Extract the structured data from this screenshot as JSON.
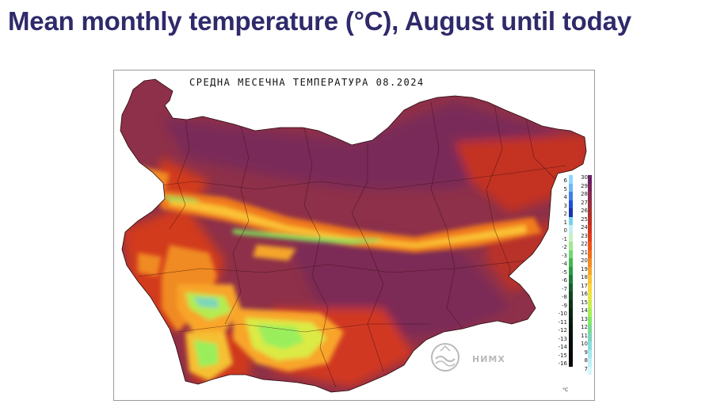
{
  "slide": {
    "title": "Mean monthly temperature (°C), August until today"
  },
  "map": {
    "title": "СРЕДНА МЕСЕЧНА ТЕМПЕРАТУРА  08.2024",
    "logo_text": "НИМХ",
    "unit": "°C",
    "legend_left_labels": [
      "6",
      "5",
      "4",
      "3",
      "2",
      "1",
      "0",
      "-1",
      "-2",
      "-3",
      "-4",
      "-5",
      "-6",
      "-7",
      "-8",
      "-9",
      "-10",
      "-11",
      "-12",
      "-13",
      "-14",
      "-15",
      "-16"
    ],
    "legend_right_labels": [
      "30",
      "29",
      "28",
      "27",
      "26",
      "25",
      "24",
      "23",
      "22",
      "21",
      "20",
      "19",
      "18",
      "17",
      "16",
      "15",
      "14",
      "13",
      "12",
      "11",
      "10",
      "9",
      "8",
      "7"
    ],
    "legend_left_colors": [
      "#8fd6ff",
      "#6fb6f5",
      "#3f7fe8",
      "#1f4fd8",
      "#1633b0",
      "#7ad0e8",
      "#bfeef5",
      "#c8f0c0",
      "#a0e890",
      "#70d870",
      "#40b850",
      "#2a9a40",
      "#1e7a34",
      "#165c2a",
      "#0f4420",
      "#0b3318",
      "#082612",
      "#061c0d",
      "#04140a",
      "#030f07",
      "#020a05",
      "#020804",
      "#010603"
    ],
    "legend_right_colors": [
      "#6a1e63",
      "#7a2458",
      "#8a2a4e",
      "#9a2e3e",
      "#ab2f2f",
      "#c02f24",
      "#d2341c",
      "#e23d18",
      "#ec5418",
      "#f06c1c",
      "#f48a24",
      "#f8a52c",
      "#fbc234",
      "#fbd63c",
      "#e9e644",
      "#c8ee4c",
      "#a4ee58",
      "#84e868",
      "#78dc94",
      "#7ad6bc",
      "#88dede",
      "#a2e8ee",
      "#bcf0f6",
      "#d4f8fc"
    ]
  }
}
